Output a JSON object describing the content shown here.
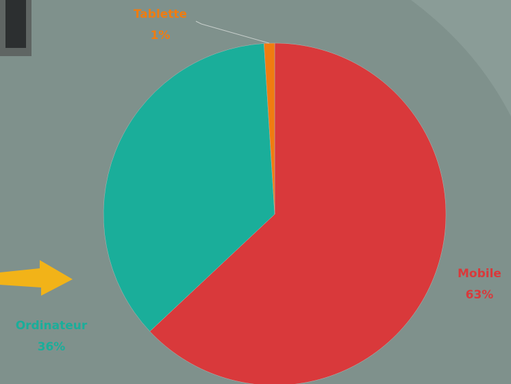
{
  "chart_data": {
    "type": "pie",
    "categories": [
      "Mobile",
      "Ordinateur",
      "Tablette"
    ],
    "values": [
      63,
      36,
      1
    ],
    "value_labels": [
      "63%",
      "36%",
      "1%"
    ],
    "colors": [
      "#d9393b",
      "#1aae9a",
      "#f07c10"
    ]
  }
}
